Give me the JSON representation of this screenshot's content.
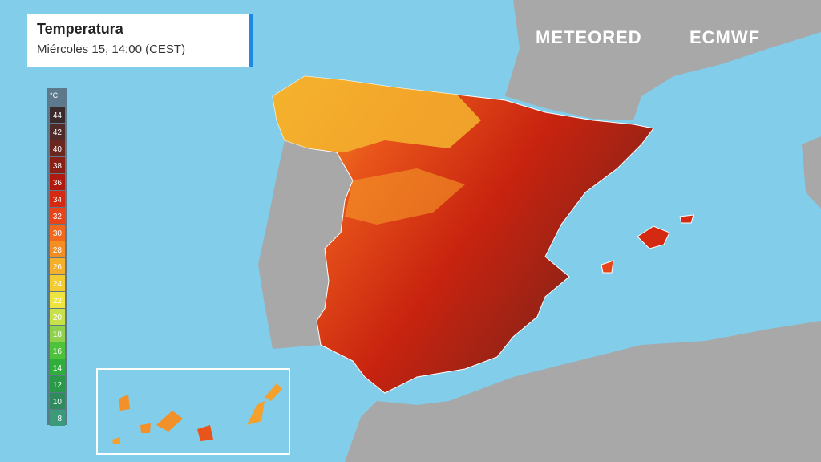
{
  "header": {
    "title": "Temperatura",
    "subtitle": "Miércoles 15, 14:00 (CEST)"
  },
  "legend": {
    "unit": "°C",
    "ticks": [
      44,
      42,
      40,
      38,
      36,
      34,
      32,
      30,
      28,
      26,
      24,
      22,
      20,
      18,
      16,
      14,
      12,
      10,
      8
    ],
    "colors": [
      "#3a2a2a",
      "#4f2a26",
      "#6b2620",
      "#8a1f16",
      "#b0190f",
      "#d42a12",
      "#e8441a",
      "#f2691e",
      "#f48e22",
      "#f4b02a",
      "#f2cc30",
      "#eee440",
      "#c8e04a",
      "#8fd14a",
      "#4fc23c",
      "#2fae3c",
      "#2b9a48",
      "#2f8a5c",
      "#3a9a7a"
    ]
  },
  "brands": [
    "METEORED",
    "ECMWF"
  ]
}
